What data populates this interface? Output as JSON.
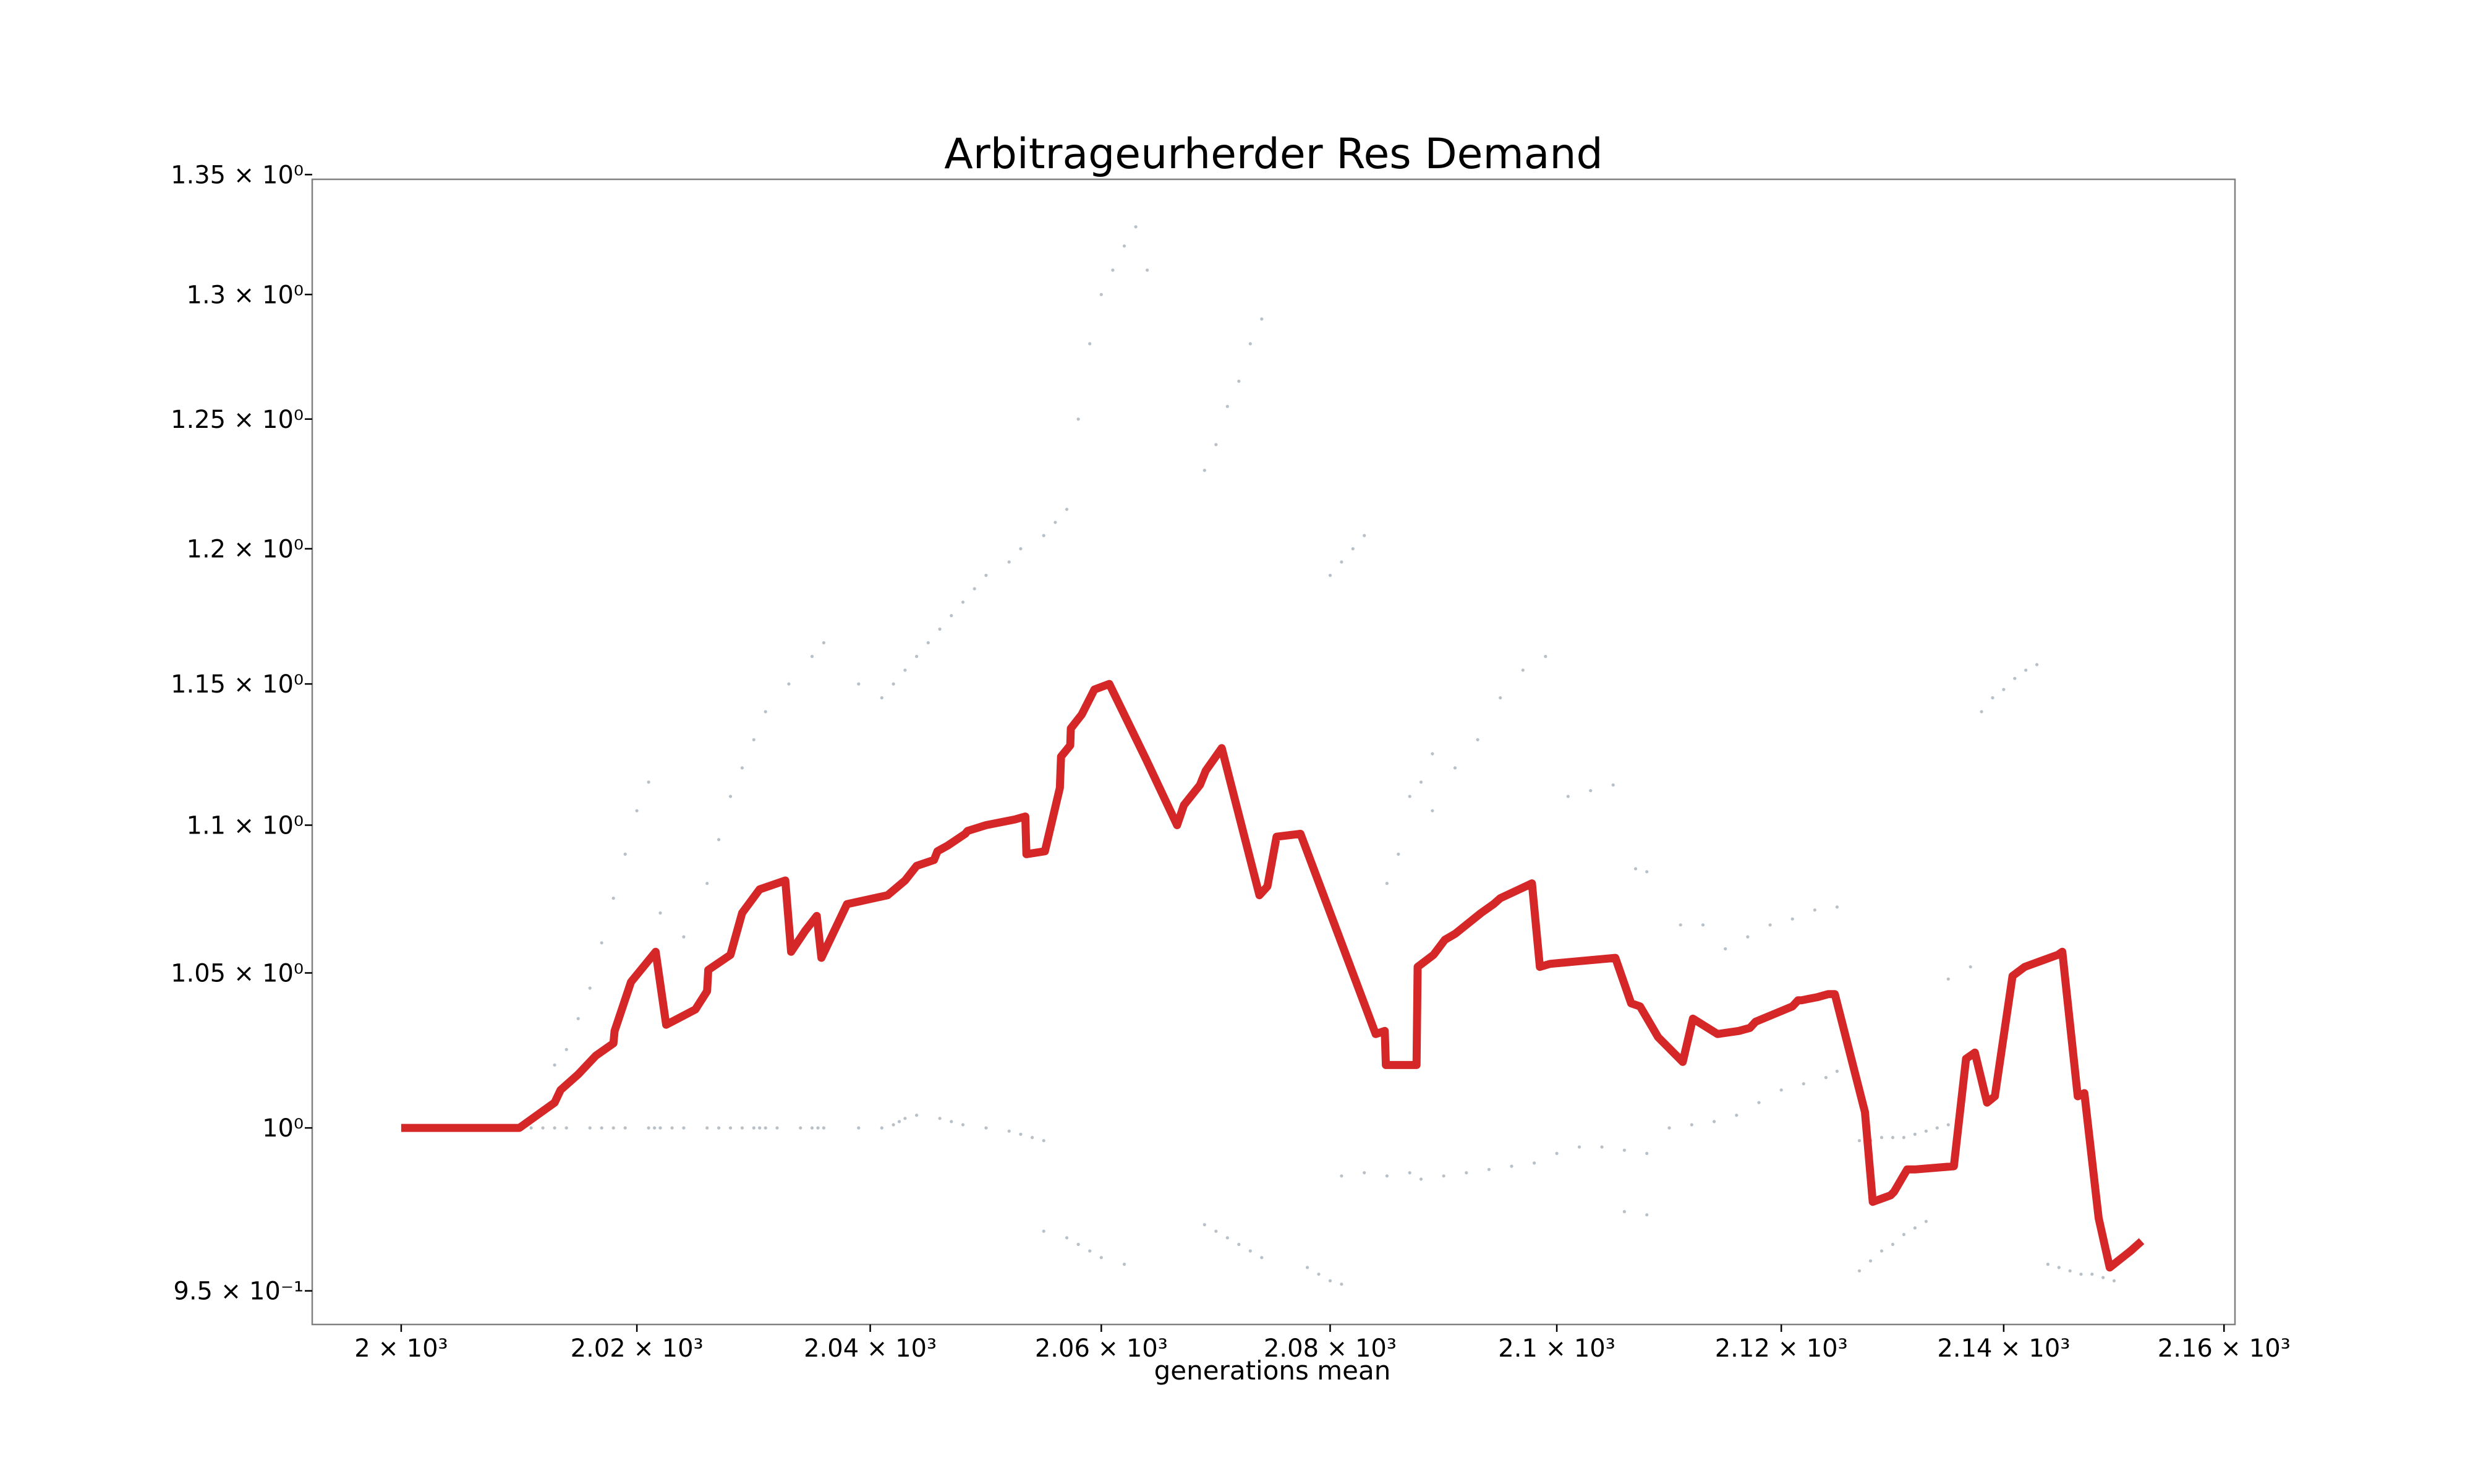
{
  "chart_data": {
    "type": "line",
    "title": "Arbitrageurherder Res Demand",
    "xlabel": "generations mean",
    "ylabel": "",
    "x_scale": "log",
    "y_scale": "log",
    "xlim": [
      1992.5,
      2161
    ],
    "ylim": [
      0.94,
      1.348
    ],
    "grid": false,
    "legend": "none",
    "series_color": "#d62728",
    "scatter_color": "#9aa5b1",
    "x_ticks": [
      {
        "value": 2000,
        "label": "2 × 10³"
      },
      {
        "value": 2020,
        "label": "2.02 × 10³"
      },
      {
        "value": 2040,
        "label": "2.04 × 10³"
      },
      {
        "value": 2060,
        "label": "2.06 × 10³"
      },
      {
        "value": 2080,
        "label": "2.08 × 10³"
      },
      {
        "value": 2100,
        "label": "2.1 × 10³"
      },
      {
        "value": 2120,
        "label": "2.12 × 10³"
      },
      {
        "value": 2140,
        "label": "2.14 × 10³"
      },
      {
        "value": 2160,
        "label": "2.16 × 10³"
      }
    ],
    "y_ticks": [
      {
        "value": 0.95,
        "label": "9.5 × 10⁻¹"
      },
      {
        "value": 1.0,
        "label": "10⁰"
      },
      {
        "value": 1.05,
        "label": "1.05 × 10⁰"
      },
      {
        "value": 1.1,
        "label": "1.1 × 10⁰"
      },
      {
        "value": 1.15,
        "label": "1.15 × 10⁰"
      },
      {
        "value": 1.2,
        "label": "1.2 × 10⁰"
      },
      {
        "value": 1.25,
        "label": "1.25 × 10⁰"
      },
      {
        "value": 1.3,
        "label": "1.3 × 10⁰"
      },
      {
        "value": 1.35,
        "label": "1.35 × 10⁰"
      }
    ],
    "series": [
      {
        "x": [
          2000,
          2005,
          2010,
          2013,
          2013.5,
          2015,
          2016.5,
          2018,
          2018.1,
          2019.5,
          2021.6,
          2022.5,
          2025,
          2026,
          2026.1,
          2028,
          2029,
          2030.5,
          2032.7,
          2033.2,
          2034.4,
          2035.4,
          2035.8,
          2038,
          2041.5,
          2043,
          2044,
          2045.5,
          2045.8,
          2046.7,
          2048.2,
          2048.4,
          2050,
          2052.5,
          2053.4,
          2053.5,
          2055.1,
          2056.4,
          2056.5,
          2057.3,
          2057.35,
          2058.3,
          2059.4,
          2060.7,
          2063.9,
          2066.6,
          2067.2,
          2068.6,
          2069.1,
          2070.5,
          2073.8,
          2074.5,
          2075.3,
          2077.4,
          2084,
          2084.8,
          2084.9,
          2087.6,
          2087.7,
          2089.1,
          2090.1,
          2091,
          2093.3,
          2094.4,
          2095,
          2097.8,
          2098.5,
          2099.4,
          2105.2,
          2106.6,
          2107.4,
          2109,
          2111.2,
          2112.1,
          2114.3,
          2116.2,
          2117.2,
          2117.7,
          2121,
          2121.5,
          2121.8,
          2123.2,
          2124.2,
          2124.4,
          2124.8,
          2127.5,
          2128.2,
          2129.8,
          2130.1,
          2131.3,
          2132,
          2135.5,
          2136.6,
          2137.4,
          2138.5,
          2139.2,
          2140.8,
          2141.9,
          2144.9,
          2145.3,
          2146.7,
          2147.3,
          2148.6,
          2149.6,
          2151.5,
          2152.5
        ],
        "y": [
          1.0,
          1.0,
          1.0,
          1.008,
          1.012,
          1.017,
          1.023,
          1.027,
          1.031,
          1.047,
          1.057,
          1.033,
          1.038,
          1.044,
          1.051,
          1.056,
          1.07,
          1.078,
          1.081,
          1.057,
          1.064,
          1.069,
          1.055,
          1.073,
          1.076,
          1.081,
          1.086,
          1.088,
          1.091,
          1.093,
          1.097,
          1.098,
          1.1,
          1.102,
          1.103,
          1.09,
          1.091,
          1.113,
          1.124,
          1.128,
          1.134,
          1.139,
          1.148,
          1.15,
          1.123,
          1.1,
          1.107,
          1.114,
          1.119,
          1.127,
          1.076,
          1.079,
          1.096,
          1.097,
          1.03,
          1.031,
          1.02,
          1.02,
          1.052,
          1.056,
          1.061,
          1.063,
          1.07,
          1.073,
          1.075,
          1.08,
          1.052,
          1.053,
          1.055,
          1.04,
          1.039,
          1.029,
          1.021,
          1.035,
          1.03,
          1.031,
          1.032,
          1.034,
          1.039,
          1.041,
          1.041,
          1.042,
          1.043,
          1.043,
          1.043,
          1.005,
          0.977,
          0.979,
          0.98,
          0.987,
          0.987,
          0.988,
          1.022,
          1.024,
          1.008,
          1.01,
          1.049,
          1.052,
          1.056,
          1.057,
          1.01,
          1.011,
          0.972,
          0.957,
          0.962,
          0.965
        ]
      }
    ],
    "scatter": [
      {
        "x": [
          2008,
          2009,
          2010,
          2011,
          2012,
          2013,
          2014,
          2016,
          2017,
          2018,
          2019,
          2021,
          2021.5,
          2022,
          2023,
          2024,
          2026,
          2027,
          2028,
          2029,
          2030,
          2030.5,
          2031,
          2032,
          2034,
          2035,
          2035.5,
          2036,
          2039,
          2041,
          2042,
          2042.5,
          2043,
          2044,
          2046,
          2047,
          2048,
          2050,
          2052,
          2053,
          2054,
          2055
        ],
        "y": [
          1.0,
          1.0,
          1.0,
          1.0,
          1.0,
          1.0,
          1.0,
          1.0,
          1.0,
          1.0,
          1.0,
          1.0,
          1.0,
          1.0,
          1.0,
          1.0,
          1.0,
          1.0,
          1.0,
          1.0,
          1.0,
          1.0,
          1.0,
          1.0,
          1.0,
          1.0,
          1.0,
          1.0,
          1.0,
          1.0,
          1.001,
          1.002,
          1.003,
          1.004,
          1.003,
          1.002,
          1.001,
          1.0,
          0.999,
          0.998,
          0.997,
          0.996
        ]
      },
      {
        "x": [
          2013,
          2014,
          2015,
          2016,
          2017,
          2018,
          2019,
          2020,
          2021,
          2022,
          2024,
          2026,
          2027,
          2028,
          2029,
          2030,
          2031,
          2033,
          2035,
          2036,
          2039,
          2041,
          2042,
          2043,
          2044,
          2045,
          2046,
          2047,
          2048,
          2049,
          2050,
          2052,
          2053,
          2055,
          2056,
          2057,
          2058,
          2059,
          2060,
          2061,
          2062
        ],
        "y": [
          1.02,
          1.025,
          1.035,
          1.045,
          1.06,
          1.075,
          1.09,
          1.105,
          1.115,
          1.07,
          1.062,
          1.08,
          1.095,
          1.11,
          1.12,
          1.13,
          1.14,
          1.15,
          1.16,
          1.165,
          1.15,
          1.145,
          1.15,
          1.155,
          1.16,
          1.165,
          1.17,
          1.175,
          1.18,
          1.185,
          1.19,
          1.195,
          1.2,
          1.205,
          1.21,
          1.215,
          1.25,
          1.28,
          1.3,
          1.31,
          1.32
        ]
      },
      {
        "x": [
          2055,
          2057,
          2058,
          2059,
          2060,
          2062,
          2069,
          2070,
          2071,
          2072,
          2073,
          2074,
          2078,
          2079,
          2080,
          2081
        ],
        "y": [
          0.968,
          0.966,
          0.964,
          0.962,
          0.96,
          0.958,
          0.97,
          0.968,
          0.966,
          0.964,
          0.962,
          0.96,
          0.957,
          0.955,
          0.953,
          0.952
        ]
      },
      {
        "x": [
          2063,
          2064,
          2069,
          2070,
          2071,
          2072,
          2073,
          2074,
          2080,
          2081,
          2082,
          2083,
          2085,
          2086,
          2087,
          2088,
          2089
        ],
        "y": [
          1.328,
          1.31,
          1.23,
          1.24,
          1.255,
          1.265,
          1.28,
          1.29,
          1.19,
          1.195,
          1.2,
          1.205,
          1.08,
          1.09,
          1.11,
          1.115,
          1.125
        ]
      },
      {
        "x": [
          2081,
          2083,
          2085,
          2087,
          2088,
          2090,
          2092,
          2094,
          2096,
          2098,
          2100,
          2102,
          2104,
          2106,
          2108
        ],
        "y": [
          0.985,
          0.986,
          0.985,
          0.986,
          0.984,
          0.985,
          0.986,
          0.987,
          0.988,
          0.989,
          0.992,
          0.994,
          0.994,
          0.993,
          0.992
        ]
      },
      {
        "x": [
          2089,
          2091,
          2093,
          2095,
          2097,
          2099,
          2101,
          2103,
          2105,
          2107,
          2108,
          2111,
          2113,
          2115,
          2117,
          2119,
          2121,
          2123,
          2125
        ],
        "y": [
          1.105,
          1.12,
          1.13,
          1.145,
          1.155,
          1.16,
          1.11,
          1.112,
          1.114,
          1.085,
          1.084,
          1.066,
          1.066,
          1.058,
          1.062,
          1.066,
          1.068,
          1.071,
          1.072
        ]
      },
      {
        "x": [
          2106,
          2108,
          2110,
          2112,
          2114,
          2116,
          2118,
          2120,
          2122,
          2124,
          2125,
          2127,
          2128,
          2129,
          2130,
          2131,
          2132,
          2133,
          2134,
          2135
        ],
        "y": [
          0.974,
          0.973,
          1.0,
          1.001,
          1.002,
          1.004,
          1.008,
          1.012,
          1.014,
          1.016,
          1.018,
          0.996,
          0.996,
          0.997,
          0.997,
          0.997,
          0.998,
          0.999,
          1.0,
          1.001
        ]
      },
      {
        "x": [
          2127,
          2128,
          2129,
          2130,
          2131,
          2132,
          2133,
          2135,
          2137,
          2138,
          2139,
          2140,
          2141,
          2142,
          2143,
          2144,
          2145,
          2146,
          2147,
          2148,
          2149,
          2150
        ],
        "y": [
          0.956,
          0.959,
          0.962,
          0.964,
          0.967,
          0.969,
          0.971,
          1.048,
          1.052,
          1.14,
          1.145,
          1.148,
          1.152,
          1.155,
          1.157,
          0.958,
          0.957,
          0.956,
          0.955,
          0.955,
          0.954,
          0.953
        ]
      }
    ]
  }
}
